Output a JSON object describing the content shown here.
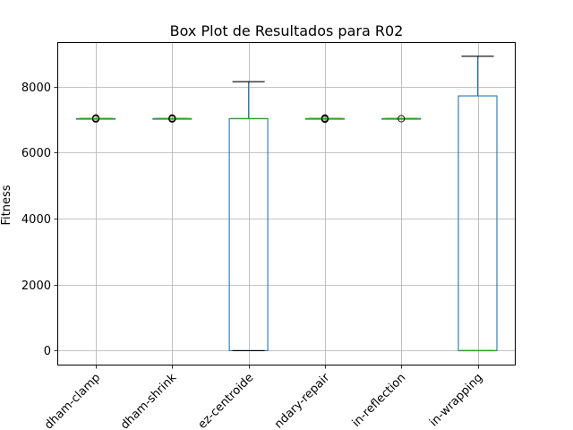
{
  "chart_data": {
    "type": "box",
    "title": "Box Plot de Resultados para R02",
    "xlabel": "",
    "ylabel": "Fitness",
    "ylim": [
      -450,
      9350
    ],
    "yticks": [
      0,
      2000,
      4000,
      6000,
      8000
    ],
    "grid": true,
    "categories": [
      "bertham-clamp",
      "bertham-shrink",
      "lopez-centroide",
      "boundary-repair",
      "min-reflection",
      "min-wrapping"
    ],
    "categories_visible_text": [
      "dham-clamp",
      "dham-shrink",
      "ez-centroide",
      "ndary-repair",
      "in-reflection",
      "in-wrapping"
    ],
    "boxes": [
      {
        "min": 7030,
        "q1": 7030,
        "median": 7030,
        "q3": 7030,
        "max": 7030,
        "outliers": [
          7020,
          7030,
          7040,
          7050
        ]
      },
      {
        "min": 7030,
        "q1": 7030,
        "median": 7030,
        "q3": 7030,
        "max": 7030,
        "outliers": [
          7020,
          7030,
          7040,
          7050
        ]
      },
      {
        "min": 0,
        "q1": 0,
        "median": 7030,
        "q3": 7030,
        "max": 8150,
        "outliers": []
      },
      {
        "min": 7030,
        "q1": 7030,
        "median": 7030,
        "q3": 7030,
        "max": 7030,
        "outliers": [
          7010,
          7030,
          7050
        ]
      },
      {
        "min": 7030,
        "q1": 7030,
        "median": 7030,
        "q3": 7030,
        "max": 7030,
        "outliers": [
          7030
        ]
      },
      {
        "min": 0,
        "q1": 0,
        "median": 0,
        "q3": 7720,
        "max": 8920,
        "outliers": []
      }
    ],
    "colors": {
      "box": "#1f77b4",
      "median": "#2ca02c",
      "whisker": "#000000",
      "grid": "#b0b0b0"
    }
  }
}
